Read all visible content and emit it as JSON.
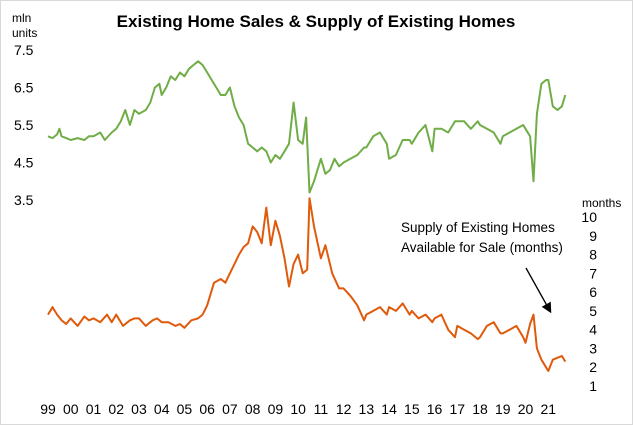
{
  "chart_data": {
    "type": "line",
    "title": "Existing Home Sales & Supply of Existing Homes",
    "left_unit_line1": "mln",
    "left_unit_line2": "units",
    "right_unit": "months",
    "annotation_line1": "Supply of Existing Homes",
    "annotation_line2": "Available  for Sale (months)",
    "x_tick_labels": [
      "99",
      "00",
      "01",
      "02",
      "03",
      "04",
      "05",
      "06",
      "07",
      "08",
      "09",
      "10",
      "11",
      "12",
      "13",
      "14",
      "15",
      "16",
      "17",
      "18",
      "19",
      "20",
      "21"
    ],
    "x_range": [
      1999,
      2022
    ],
    "left_axis": {
      "ticks": [
        "7.5",
        "6.5",
        "5.5",
        "4.5",
        "3.5"
      ],
      "range": [
        3.5,
        7.5
      ]
    },
    "right_axis": {
      "ticks": [
        "10",
        "9",
        "8",
        "7",
        "6",
        "5",
        "4",
        "3",
        "2",
        "1"
      ],
      "range": [
        1,
        10
      ]
    },
    "colors": {
      "sales": "#70ad47",
      "supply": "#e05a0c",
      "arrow": "#000000"
    },
    "series": [
      {
        "name": "",
        "axis": "left",
        "points": [
          [
            1999.0,
            5.2
          ],
          [
            1999.2,
            5.15
          ],
          [
            1999.4,
            5.25
          ],
          [
            1999.5,
            5.4
          ],
          [
            1999.6,
            5.2
          ],
          [
            1999.8,
            5.15
          ],
          [
            2000.0,
            5.1
          ],
          [
            2000.3,
            5.15
          ],
          [
            2000.6,
            5.1
          ],
          [
            2000.8,
            5.2
          ],
          [
            2001.0,
            5.2
          ],
          [
            2001.3,
            5.3
          ],
          [
            2001.5,
            5.1
          ],
          [
            2001.8,
            5.3
          ],
          [
            2002.0,
            5.4
          ],
          [
            2002.2,
            5.6
          ],
          [
            2002.4,
            5.9
          ],
          [
            2002.6,
            5.5
          ],
          [
            2002.8,
            5.9
          ],
          [
            2003.0,
            5.8
          ],
          [
            2003.3,
            5.9
          ],
          [
            2003.5,
            6.1
          ],
          [
            2003.7,
            6.5
          ],
          [
            2003.9,
            6.6
          ],
          [
            2004.0,
            6.3
          ],
          [
            2004.2,
            6.5
          ],
          [
            2004.4,
            6.8
          ],
          [
            2004.6,
            6.7
          ],
          [
            2004.8,
            6.9
          ],
          [
            2005.0,
            6.8
          ],
          [
            2005.2,
            7.0
          ],
          [
            2005.4,
            7.1
          ],
          [
            2005.6,
            7.2
          ],
          [
            2005.8,
            7.1
          ],
          [
            2006.0,
            6.9
          ],
          [
            2006.2,
            6.7
          ],
          [
            2006.4,
            6.5
          ],
          [
            2006.6,
            6.3
          ],
          [
            2006.8,
            6.3
          ],
          [
            2007.0,
            6.5
          ],
          [
            2007.2,
            6.0
          ],
          [
            2007.4,
            5.7
          ],
          [
            2007.6,
            5.5
          ],
          [
            2007.8,
            5.0
          ],
          [
            2008.0,
            4.9
          ],
          [
            2008.2,
            4.8
          ],
          [
            2008.4,
            4.9
          ],
          [
            2008.6,
            4.8
          ],
          [
            2008.8,
            4.5
          ],
          [
            2009.0,
            4.7
          ],
          [
            2009.2,
            4.6
          ],
          [
            2009.4,
            4.8
          ],
          [
            2009.6,
            5.0
          ],
          [
            2009.8,
            6.1
          ],
          [
            2010.0,
            5.1
          ],
          [
            2010.2,
            5.0
          ],
          [
            2010.35,
            5.7
          ],
          [
            2010.5,
            3.7
          ],
          [
            2010.7,
            4.0
          ],
          [
            2010.9,
            4.4
          ],
          [
            2011.0,
            4.6
          ],
          [
            2011.2,
            4.2
          ],
          [
            2011.4,
            4.3
          ],
          [
            2011.6,
            4.6
          ],
          [
            2011.8,
            4.4
          ],
          [
            2012.0,
            4.5
          ],
          [
            2012.3,
            4.6
          ],
          [
            2012.6,
            4.7
          ],
          [
            2012.9,
            4.9
          ],
          [
            2013.0,
            4.9
          ],
          [
            2013.3,
            5.2
          ],
          [
            2013.6,
            5.3
          ],
          [
            2013.9,
            5.0
          ],
          [
            2014.0,
            4.6
          ],
          [
            2014.3,
            4.7
          ],
          [
            2014.6,
            5.1
          ],
          [
            2014.9,
            5.1
          ],
          [
            2015.0,
            5.0
          ],
          [
            2015.3,
            5.3
          ],
          [
            2015.6,
            5.5
          ],
          [
            2015.9,
            4.8
          ],
          [
            2016.0,
            5.4
          ],
          [
            2016.3,
            5.4
          ],
          [
            2016.6,
            5.3
          ],
          [
            2016.9,
            5.6
          ],
          [
            2017.0,
            5.6
          ],
          [
            2017.3,
            5.6
          ],
          [
            2017.6,
            5.4
          ],
          [
            2017.9,
            5.6
          ],
          [
            2018.0,
            5.5
          ],
          [
            2018.3,
            5.4
          ],
          [
            2018.6,
            5.3
          ],
          [
            2018.9,
            5.0
          ],
          [
            2019.0,
            5.2
          ],
          [
            2019.3,
            5.3
          ],
          [
            2019.6,
            5.4
          ],
          [
            2019.9,
            5.5
          ],
          [
            2020.0,
            5.4
          ],
          [
            2020.2,
            5.2
          ],
          [
            2020.35,
            4.0
          ],
          [
            2020.5,
            5.8
          ],
          [
            2020.7,
            6.6
          ],
          [
            2020.9,
            6.7
          ],
          [
            2021.0,
            6.7
          ],
          [
            2021.2,
            6.0
          ],
          [
            2021.4,
            5.9
          ],
          [
            2021.6,
            6.0
          ],
          [
            2021.75,
            6.3
          ]
        ]
      },
      {
        "name": "Supply of Existing Homes Available  for Sale (months)",
        "axis": "right",
        "points": [
          [
            1999.0,
            4.8
          ],
          [
            1999.2,
            5.2
          ],
          [
            1999.4,
            4.8
          ],
          [
            1999.6,
            4.5
          ],
          [
            1999.8,
            4.3
          ],
          [
            2000.0,
            4.6
          ],
          [
            2000.3,
            4.2
          ],
          [
            2000.6,
            4.7
          ],
          [
            2000.8,
            4.5
          ],
          [
            2001.0,
            4.6
          ],
          [
            2001.3,
            4.4
          ],
          [
            2001.6,
            4.8
          ],
          [
            2001.8,
            4.4
          ],
          [
            2002.0,
            4.8
          ],
          [
            2002.3,
            4.2
          ],
          [
            2002.6,
            4.5
          ],
          [
            2002.8,
            4.6
          ],
          [
            2003.0,
            4.6
          ],
          [
            2003.3,
            4.2
          ],
          [
            2003.6,
            4.5
          ],
          [
            2003.8,
            4.6
          ],
          [
            2004.0,
            4.4
          ],
          [
            2004.3,
            4.4
          ],
          [
            2004.6,
            4.2
          ],
          [
            2004.8,
            4.3
          ],
          [
            2005.0,
            4.1
          ],
          [
            2005.3,
            4.5
          ],
          [
            2005.6,
            4.6
          ],
          [
            2005.8,
            4.8
          ],
          [
            2006.0,
            5.3
          ],
          [
            2006.3,
            6.5
          ],
          [
            2006.6,
            6.7
          ],
          [
            2006.8,
            6.5
          ],
          [
            2007.0,
            7.0
          ],
          [
            2007.2,
            7.5
          ],
          [
            2007.4,
            8.0
          ],
          [
            2007.6,
            8.4
          ],
          [
            2007.8,
            8.6
          ],
          [
            2008.0,
            9.5
          ],
          [
            2008.2,
            9.2
          ],
          [
            2008.4,
            8.6
          ],
          [
            2008.6,
            10.5
          ],
          [
            2008.8,
            8.5
          ],
          [
            2009.0,
            9.8
          ],
          [
            2009.2,
            9.0
          ],
          [
            2009.4,
            7.8
          ],
          [
            2009.6,
            6.3
          ],
          [
            2009.8,
            7.5
          ],
          [
            2010.0,
            8.0
          ],
          [
            2010.2,
            7.0
          ],
          [
            2010.4,
            7.2
          ],
          [
            2010.5,
            11.0
          ],
          [
            2010.7,
            9.5
          ],
          [
            2011.0,
            7.8
          ],
          [
            2011.2,
            8.5
          ],
          [
            2011.5,
            7.0
          ],
          [
            2011.8,
            6.2
          ],
          [
            2012.0,
            6.2
          ],
          [
            2012.3,
            5.8
          ],
          [
            2012.6,
            5.3
          ],
          [
            2012.9,
            4.5
          ],
          [
            2013.0,
            4.8
          ],
          [
            2013.3,
            5.0
          ],
          [
            2013.6,
            5.2
          ],
          [
            2013.9,
            4.8
          ],
          [
            2014.0,
            5.2
          ],
          [
            2014.3,
            5.0
          ],
          [
            2014.6,
            5.4
          ],
          [
            2014.9,
            4.8
          ],
          [
            2015.0,
            5.0
          ],
          [
            2015.3,
            4.6
          ],
          [
            2015.6,
            4.8
          ],
          [
            2015.9,
            4.4
          ],
          [
            2016.0,
            4.6
          ],
          [
            2016.3,
            4.8
          ],
          [
            2016.6,
            4.0
          ],
          [
            2016.9,
            3.6
          ],
          [
            2017.0,
            4.2
          ],
          [
            2017.3,
            4.0
          ],
          [
            2017.6,
            3.8
          ],
          [
            2017.9,
            3.5
          ],
          [
            2018.0,
            3.6
          ],
          [
            2018.3,
            4.2
          ],
          [
            2018.6,
            4.4
          ],
          [
            2018.9,
            3.8
          ],
          [
            2019.0,
            3.8
          ],
          [
            2019.3,
            4.0
          ],
          [
            2019.6,
            4.2
          ],
          [
            2019.9,
            3.6
          ],
          [
            2020.0,
            3.3
          ],
          [
            2020.2,
            4.3
          ],
          [
            2020.35,
            4.8
          ],
          [
            2020.5,
            3.0
          ],
          [
            2020.7,
            2.4
          ],
          [
            2020.9,
            2.0
          ],
          [
            2021.0,
            1.8
          ],
          [
            2021.2,
            2.4
          ],
          [
            2021.4,
            2.5
          ],
          [
            2021.6,
            2.6
          ],
          [
            2021.75,
            2.3
          ]
        ]
      }
    ]
  }
}
